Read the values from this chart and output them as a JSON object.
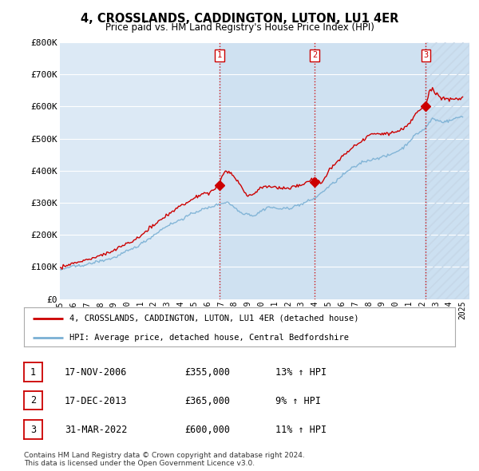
{
  "title": "4, CROSSLANDS, CADDINGTON, LUTON, LU1 4ER",
  "subtitle": "Price paid vs. HM Land Registry's House Price Index (HPI)",
  "ylabel_ticks": [
    "£0",
    "£100K",
    "£200K",
    "£300K",
    "£400K",
    "£500K",
    "£600K",
    "£700K",
    "£800K"
  ],
  "ytick_vals": [
    0,
    100000,
    200000,
    300000,
    400000,
    500000,
    600000,
    700000,
    800000
  ],
  "ylim": [
    0,
    800000
  ],
  "xlim_start": 1995.0,
  "xlim_end": 2025.5,
  "background_color": "#dce9f5",
  "grid_color": "#ffffff",
  "sale_dates": [
    2006.88,
    2013.96,
    2022.25
  ],
  "sale_prices": [
    355000,
    365000,
    600000
  ],
  "sale_labels": [
    "1",
    "2",
    "3"
  ],
  "vline_color": "#cc0000",
  "house_line_color": "#cc0000",
  "hpi_line_color": "#7ab0d4",
  "legend_label_house": "4, CROSSLANDS, CADDINGTON, LUTON, LU1 4ER (detached house)",
  "legend_label_hpi": "HPI: Average price, detached house, Central Bedfordshire",
  "table_rows": [
    {
      "num": "1",
      "date": "17-NOV-2006",
      "price": "£355,000",
      "hpi": "13% ↑ HPI"
    },
    {
      "num": "2",
      "date": "17-DEC-2013",
      "price": "£365,000",
      "hpi": "9% ↑ HPI"
    },
    {
      "num": "3",
      "date": "31-MAR-2022",
      "price": "£600,000",
      "hpi": "11% ↑ HPI"
    }
  ],
  "footnote": "Contains HM Land Registry data © Crown copyright and database right 2024.\nThis data is licensed under the Open Government Licence v3.0.",
  "xtick_years": [
    1995,
    1996,
    1997,
    1998,
    1999,
    2000,
    2001,
    2002,
    2003,
    2004,
    2005,
    2006,
    2007,
    2008,
    2009,
    2010,
    2011,
    2012,
    2013,
    2014,
    2015,
    2016,
    2017,
    2018,
    2019,
    2020,
    2021,
    2022,
    2023,
    2024,
    2025
  ]
}
